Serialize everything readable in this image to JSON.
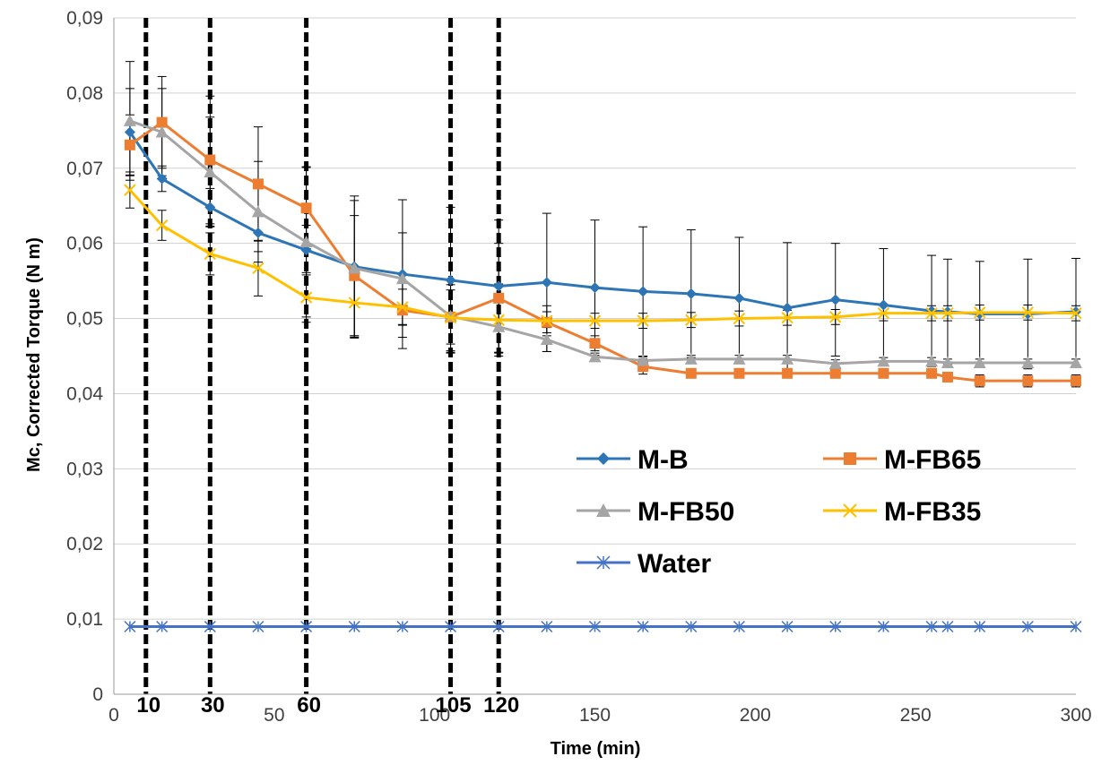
{
  "chart_data": {
    "type": "line",
    "xlabel": "Time (min)",
    "ylabel": "Mc, Corrected Torque (N m)",
    "xlim": [
      0,
      300
    ],
    "ylim": [
      0,
      0.09
    ],
    "x_ticks": [
      0,
      50,
      100,
      150,
      200,
      250,
      300
    ],
    "x_tick_labels": [
      "0",
      "50",
      "100",
      "150",
      "200",
      "250",
      "300"
    ],
    "y_ticks": [
      0,
      0.01,
      0.02,
      0.03,
      0.04,
      0.05,
      0.06,
      0.07,
      0.08,
      0.09
    ],
    "y_tick_labels": [
      "0",
      "0,01",
      "0,02",
      "0,03",
      "0,04",
      "0,05",
      "0,06",
      "0,07",
      "0,08",
      "0,09"
    ],
    "grid": "horizontal",
    "legend_position": "center-right",
    "vertical_markers": [
      {
        "x": 10,
        "label": "10"
      },
      {
        "x": 30,
        "label": "30"
      },
      {
        "x": 60,
        "label": "60"
      },
      {
        "x": 105,
        "label": "105"
      },
      {
        "x": 120,
        "label": "120"
      }
    ],
    "series": [
      {
        "name": "M-B",
        "color": "#2e75b6",
        "marker": "diamond",
        "x": [
          5,
          15,
          30,
          45,
          60,
          75,
          90,
          105,
          120,
          135,
          150,
          165,
          180,
          195,
          210,
          225,
          240,
          255,
          260,
          270,
          285,
          300
        ],
        "y": [
          0.0748,
          0.0686,
          0.0648,
          0.0614,
          0.0591,
          0.0569,
          0.0559,
          0.0551,
          0.0543,
          0.0548,
          0.0541,
          0.0536,
          0.0533,
          0.0527,
          0.0514,
          0.0525,
          0.0518,
          0.051,
          0.0509,
          0.0506,
          0.0506,
          0.0509
        ],
        "err": [
          0.0058,
          0.0017,
          0.0025,
          0.0025,
          0.0033,
          0.0094,
          0.0099,
          0.0097,
          0.0088,
          0.0092,
          0.009,
          0.0086,
          0.0085,
          0.0081,
          0.0087,
          0.0075,
          0.0075,
          0.0074,
          0.007,
          0.007,
          0.0073,
          0.0071
        ]
      },
      {
        "name": "M-FB65",
        "color": "#ed7d31",
        "marker": "square",
        "x": [
          5,
          15,
          30,
          45,
          60,
          75,
          90,
          105,
          120,
          135,
          150,
          165,
          180,
          195,
          210,
          225,
          240,
          255,
          260,
          270,
          285,
          300
        ],
        "y": [
          0.0731,
          0.0761,
          0.0711,
          0.0679,
          0.0647,
          0.0557,
          0.0511,
          0.0502,
          0.0527,
          0.0495,
          0.0467,
          0.0436,
          0.0427,
          0.0427,
          0.0427,
          0.0427,
          0.0427,
          0.0427,
          0.0422,
          0.0417,
          0.0417,
          0.0417
        ],
        "err": [
          0.004,
          0.0061,
          0.0085,
          0.0076,
          0.0054,
          0.008,
          0.0036,
          0.0036,
          0.0073,
          0.0014,
          0.001,
          0.001,
          0.0005,
          0.0005,
          0.0005,
          0.0005,
          0.0005,
          0.0005,
          0.0005,
          0.0008,
          0.0008,
          0.0008
        ]
      },
      {
        "name": "M-FB50",
        "color": "#a5a5a5",
        "marker": "triangle",
        "x": [
          5,
          15,
          30,
          45,
          60,
          75,
          90,
          105,
          120,
          135,
          150,
          165,
          180,
          195,
          210,
          225,
          240,
          255,
          260,
          270,
          285,
          300
        ],
        "y": [
          0.0763,
          0.0748,
          0.0695,
          0.0642,
          0.0602,
          0.0567,
          0.0553,
          0.0503,
          0.0489,
          0.0472,
          0.0449,
          0.0444,
          0.0446,
          0.0446,
          0.0446,
          0.044,
          0.0443,
          0.0443,
          0.0441,
          0.0441,
          0.0441,
          0.0441
        ],
        "err": [
          0.0079,
          0.0058,
          0.0073,
          0.0067,
          0.01,
          0.009,
          0.0061,
          0.0048,
          0.0034,
          0.0016,
          0.0005,
          0.0005,
          0.0005,
          0.0005,
          0.0005,
          0.0005,
          0.0005,
          0.0005,
          0.0005,
          0.0005,
          0.0005,
          0.0005
        ]
      },
      {
        "name": "M-FB35",
        "color": "#ffc000",
        "marker": "x",
        "x": [
          5,
          15,
          30,
          45,
          60,
          75,
          90,
          105,
          120,
          135,
          150,
          165,
          180,
          195,
          210,
          225,
          240,
          255,
          260,
          270,
          285,
          300
        ],
        "y": [
          0.0671,
          0.0624,
          0.0586,
          0.0567,
          0.0528,
          0.0521,
          0.0515,
          0.0501,
          0.0498,
          0.0497,
          0.0497,
          0.0497,
          0.0498,
          0.05,
          0.0501,
          0.0502,
          0.0507,
          0.0507,
          0.0507,
          0.0508,
          0.0508,
          0.0507
        ],
        "err": [
          0.0024,
          0.002,
          0.0028,
          0.0037,
          0.0033,
          0.0047,
          0.0024,
          0.0044,
          0.0048,
          0.002,
          0.001,
          0.001,
          0.001,
          0.001,
          0.001,
          0.001,
          0.001,
          0.001,
          0.001,
          0.001,
          0.001,
          0.001
        ]
      },
      {
        "name": "Water",
        "color": "#4472c4",
        "marker": "star",
        "x": [
          5,
          15,
          30,
          45,
          60,
          75,
          90,
          105,
          120,
          135,
          150,
          165,
          180,
          195,
          210,
          225,
          240,
          255,
          260,
          270,
          285,
          300
        ],
        "y": [
          0.009,
          0.009,
          0.009,
          0.009,
          0.009,
          0.009,
          0.009,
          0.009,
          0.009,
          0.009,
          0.009,
          0.009,
          0.009,
          0.009,
          0.009,
          0.009,
          0.009,
          0.009,
          0.009,
          0.009,
          0.009,
          0.009
        ],
        "err": []
      }
    ]
  }
}
